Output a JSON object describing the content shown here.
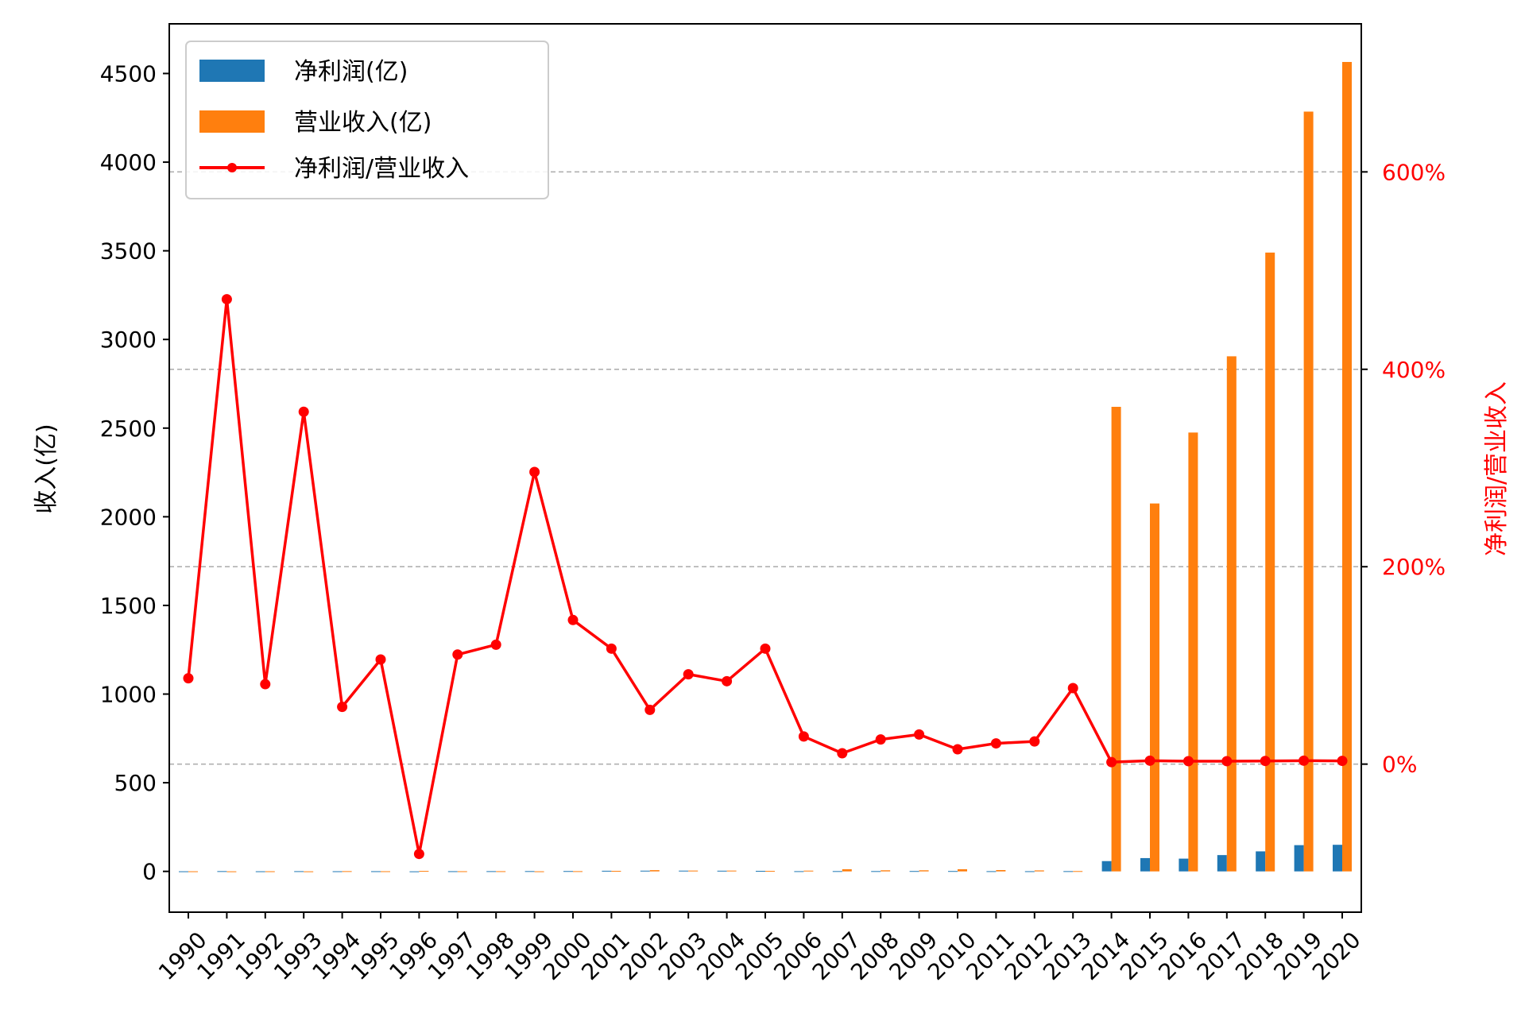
{
  "chart_data": {
    "type": "bar",
    "categories": [
      "1990",
      "1991",
      "1992",
      "1993",
      "1994",
      "1995",
      "1996",
      "1997",
      "1998",
      "1999",
      "2000",
      "2001",
      "2002",
      "2003",
      "2004",
      "2005",
      "2006",
      "2007",
      "2008",
      "2009",
      "2010",
      "2011",
      "2012",
      "2013",
      "2014",
      "2015",
      "2016",
      "2017",
      "2018",
      "2019",
      "2020"
    ],
    "series": [
      {
        "name": "净利润(亿)",
        "kind": "bar",
        "axis": "left",
        "color": "#1f77b4",
        "values": [
          0.5,
          1.5,
          0.6,
          1.2,
          0.8,
          1.0,
          0.2,
          1.0,
          1.3,
          1.6,
          1.9,
          3.5,
          4.0,
          4.2,
          3.8,
          3.0,
          1.2,
          1.6,
          1.6,
          2.0,
          2.0,
          1.2,
          1.0,
          1.4,
          58,
          75,
          72,
          92,
          113,
          148,
          150
        ]
      },
      {
        "name": "营业收入(亿)",
        "kind": "bar",
        "axis": "left",
        "color": "#ff7f0e",
        "values": [
          0.6,
          0.3,
          0.7,
          0.3,
          1.4,
          0.9,
          2.6,
          0.9,
          1.1,
          0.5,
          1.3,
          2.9,
          7.0,
          4.6,
          4.5,
          2.6,
          4.2,
          12,
          6.2,
          6.2,
          12,
          7.5,
          5.6,
          1.8,
          2620,
          2075,
          2475,
          2905,
          3490,
          4285,
          4565
        ]
      },
      {
        "name": "净利润/营业收入",
        "kind": "line",
        "axis": "right",
        "color": "#ff0000",
        "values": [
          87,
          471,
          81,
          357,
          58,
          106,
          -91,
          111,
          121,
          296,
          146,
          117,
          55,
          91,
          84,
          117,
          28,
          11,
          25,
          30,
          15,
          21,
          23,
          77,
          2,
          3.5,
          3,
          3,
          3.2,
          3.5,
          3.3
        ]
      }
    ],
    "ylabel": "收入(亿)",
    "ylabel_right": "净利润/营业收入",
    "ylim": [
      -230,
      4780
    ],
    "yticks": [
      0,
      500,
      1000,
      1500,
      2000,
      2500,
      3000,
      3500,
      4000,
      4500
    ],
    "ylim_right": [
      -150,
      750
    ],
    "yticks_right": [
      0,
      200,
      400,
      600
    ],
    "ytick_right_labels": [
      "0%",
      "200%",
      "400%",
      "600%"
    ],
    "grid": "right-axis horizontal dashed",
    "legend": "top-left",
    "xtick_rotation": 45
  }
}
